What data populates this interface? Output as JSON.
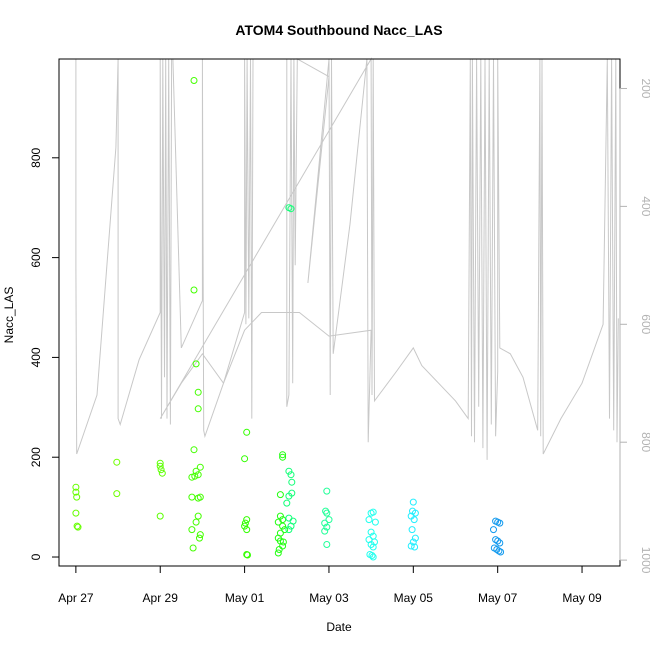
{
  "chart_data": {
    "type": "scatter",
    "title": "ATOM4 Southbound Nacc_LAS",
    "xlabel": "Date",
    "ylabel": "Nacc_LAS",
    "x_ticks": [
      "Apr 27",
      "Apr 29",
      "May 01",
      "May 03",
      "May 05",
      "May 07",
      "May 09"
    ],
    "y_ticks": [
      "0",
      "200",
      "400",
      "600",
      "800"
    ],
    "y_right_ticks": [
      "200",
      "400",
      "600",
      "800",
      "1000"
    ],
    "y_right_note": "right axis is reversed (altitude/pressure style)",
    "xlim_days": [
      -0.4,
      12.9
    ],
    "ylim": [
      -18,
      998
    ],
    "y_right_lim": [
      1010,
      150
    ],
    "colors": {
      "trace": "#c8c8c8",
      "axis": "#000000",
      "right_axis": "#b3b3b3"
    },
    "trace_right_axis": [
      [
        0.0,
        490
      ],
      [
        0.0,
        150
      ],
      [
        0.0,
        505
      ],
      [
        0.02,
        820
      ],
      [
        0.5,
        720
      ],
      [
        0.95,
        300
      ],
      [
        1.0,
        150
      ],
      [
        1.0,
        150
      ],
      [
        1.0,
        760
      ],
      [
        1.05,
        770
      ],
      [
        1.5,
        660
      ],
      [
        2.0,
        580
      ],
      [
        2.0,
        150
      ],
      [
        2.03,
        760
      ],
      [
        2.06,
        150
      ],
      [
        2.1,
        690
      ],
      [
        2.13,
        150
      ],
      [
        2.16,
        760
      ],
      [
        2.2,
        150
      ],
      [
        2.24,
        770
      ],
      [
        2.27,
        150
      ],
      [
        2.3,
        150
      ],
      [
        2.5,
        640
      ],
      [
        3.0,
        560
      ],
      [
        3.0,
        150
      ],
      [
        3.03,
        780
      ],
      [
        3.06,
        790
      ],
      [
        3.5,
        700
      ],
      [
        4.0,
        580
      ],
      [
        4.0,
        150
      ],
      [
        4.03,
        600
      ],
      [
        4.06,
        150
      ],
      [
        4.1,
        590
      ],
      [
        4.14,
        150
      ],
      [
        4.17,
        760
      ],
      [
        4.2,
        150
      ],
      [
        5.0,
        150
      ],
      [
        5.0,
        740
      ],
      [
        5.05,
        720
      ],
      [
        5.1,
        150
      ],
      [
        5.14,
        700
      ],
      [
        5.17,
        150
      ],
      [
        5.2,
        500
      ],
      [
        5.25,
        150
      ],
      [
        6.0,
        180
      ],
      [
        5.5,
        530
      ],
      [
        6.0,
        150
      ],
      [
        6.03,
        720
      ],
      [
        6.06,
        150
      ],
      [
        6.1,
        650
      ],
      [
        6.5,
        430
      ],
      [
        6.9,
        150
      ],
      [
        6.93,
        800
      ],
      [
        7.0,
        610
      ],
      [
        6.0,
        620
      ],
      [
        5.3,
        580
      ],
      [
        4.4,
        580
      ],
      [
        4.0,
        610
      ],
      [
        3.5,
        700
      ],
      [
        3.0,
        650
      ],
      [
        2.5,
        700
      ],
      [
        2.0,
        760
      ],
      [
        7.0,
        150
      ],
      [
        7.02,
        720
      ],
      [
        7.05,
        150
      ],
      [
        7.08,
        730
      ],
      [
        7.6,
        680
      ],
      [
        8.0,
        640
      ],
      [
        8.2,
        670
      ],
      [
        8.6,
        700
      ],
      [
        9.0,
        730
      ],
      [
        9.3,
        760
      ],
      [
        9.35,
        150
      ],
      [
        9.38,
        790
      ],
      [
        9.4,
        150
      ],
      [
        9.45,
        800
      ],
      [
        9.5,
        150
      ],
      [
        9.55,
        740
      ],
      [
        9.6,
        150
      ],
      [
        9.65,
        810
      ],
      [
        9.7,
        150
      ],
      [
        9.75,
        830
      ],
      [
        9.8,
        150
      ],
      [
        9.85,
        770
      ],
      [
        9.9,
        150
      ],
      [
        9.95,
        790
      ],
      [
        10.0,
        680
      ],
      [
        10.0,
        150
      ],
      [
        10.05,
        640
      ],
      [
        10.3,
        650
      ],
      [
        10.6,
        690
      ],
      [
        10.95,
        780
      ],
      [
        11.0,
        150
      ],
      [
        11.02,
        790
      ],
      [
        11.05,
        150
      ],
      [
        11.08,
        820
      ],
      [
        11.5,
        760
      ],
      [
        12.0,
        700
      ],
      [
        12.5,
        600
      ],
      [
        12.6,
        150
      ],
      [
        12.65,
        760
      ],
      [
        12.7,
        150
      ],
      [
        12.75,
        780
      ],
      [
        12.8,
        150
      ],
      [
        12.83,
        800
      ],
      [
        12.86,
        590
      ]
    ],
    "points": [
      {
        "x": 0.0,
        "y": 140,
        "c": "#66ff00"
      },
      {
        "x": 0.0,
        "y": 130,
        "c": "#66ff00"
      },
      {
        "x": 0.02,
        "y": 120,
        "c": "#66ff00"
      },
      {
        "x": 0.0,
        "y": 88,
        "c": "#66ff00"
      },
      {
        "x": 0.03,
        "y": 62,
        "c": "#66ff00"
      },
      {
        "x": 0.05,
        "y": 60,
        "c": "#66ff00"
      },
      {
        "x": 0.97,
        "y": 190,
        "c": "#6fff00"
      },
      {
        "x": 0.97,
        "y": 127,
        "c": "#6fff00"
      },
      {
        "x": 2.0,
        "y": 188,
        "c": "#5cff00"
      },
      {
        "x": 2.0,
        "y": 182,
        "c": "#5cff00"
      },
      {
        "x": 2.02,
        "y": 175,
        "c": "#5cff00"
      },
      {
        "x": 2.05,
        "y": 168,
        "c": "#5cff00"
      },
      {
        "x": 2.0,
        "y": 82,
        "c": "#5cff00"
      },
      {
        "x": 2.8,
        "y": 955,
        "c": "#44ff00"
      },
      {
        "x": 2.8,
        "y": 535,
        "c": "#44ff00"
      },
      {
        "x": 2.85,
        "y": 387,
        "c": "#44ff00"
      },
      {
        "x": 2.9,
        "y": 330,
        "c": "#44ff00"
      },
      {
        "x": 2.9,
        "y": 297,
        "c": "#44ff00"
      },
      {
        "x": 2.8,
        "y": 215,
        "c": "#44ff00"
      },
      {
        "x": 2.85,
        "y": 172,
        "c": "#44ff00"
      },
      {
        "x": 2.9,
        "y": 165,
        "c": "#44ff00"
      },
      {
        "x": 2.82,
        "y": 162,
        "c": "#44ff00"
      },
      {
        "x": 2.95,
        "y": 180,
        "c": "#44ff00"
      },
      {
        "x": 2.75,
        "y": 160,
        "c": "#44ff00"
      },
      {
        "x": 2.95,
        "y": 120,
        "c": "#44ff00"
      },
      {
        "x": 2.75,
        "y": 120,
        "c": "#44ff00"
      },
      {
        "x": 2.9,
        "y": 118,
        "c": "#44ff00"
      },
      {
        "x": 2.9,
        "y": 82,
        "c": "#44ff00"
      },
      {
        "x": 2.85,
        "y": 70,
        "c": "#44ff00"
      },
      {
        "x": 2.75,
        "y": 55,
        "c": "#44ff00"
      },
      {
        "x": 2.95,
        "y": 45,
        "c": "#44ff00"
      },
      {
        "x": 2.93,
        "y": 38,
        "c": "#44ff00"
      },
      {
        "x": 2.78,
        "y": 18,
        "c": "#44ff00"
      },
      {
        "x": 4.05,
        "y": 250,
        "c": "#33ff00"
      },
      {
        "x": 4.0,
        "y": 197,
        "c": "#33ff00"
      },
      {
        "x": 4.05,
        "y": 75,
        "c": "#33ff00"
      },
      {
        "x": 4.02,
        "y": 68,
        "c": "#33ff00"
      },
      {
        "x": 4.0,
        "y": 62,
        "c": "#33ff00"
      },
      {
        "x": 4.05,
        "y": 55,
        "c": "#33ff00"
      },
      {
        "x": 4.05,
        "y": 5,
        "c": "#33ff00"
      },
      {
        "x": 4.07,
        "y": 4,
        "c": "#33ff00"
      },
      {
        "x": 4.9,
        "y": 205,
        "c": "#22ff11"
      },
      {
        "x": 4.9,
        "y": 200,
        "c": "#22ff11"
      },
      {
        "x": 4.85,
        "y": 125,
        "c": "#22ff11"
      },
      {
        "x": 4.85,
        "y": 82,
        "c": "#22ff11"
      },
      {
        "x": 4.9,
        "y": 75,
        "c": "#22ff11"
      },
      {
        "x": 4.8,
        "y": 70,
        "c": "#22ff11"
      },
      {
        "x": 4.9,
        "y": 62,
        "c": "#22ff11"
      },
      {
        "x": 4.95,
        "y": 55,
        "c": "#22ff11"
      },
      {
        "x": 4.85,
        "y": 48,
        "c": "#22ff11"
      },
      {
        "x": 4.8,
        "y": 38,
        "c": "#22ff11"
      },
      {
        "x": 4.85,
        "y": 32,
        "c": "#22ff11"
      },
      {
        "x": 4.92,
        "y": 30,
        "c": "#22ff11"
      },
      {
        "x": 4.9,
        "y": 22,
        "c": "#22ff11"
      },
      {
        "x": 4.82,
        "y": 15,
        "c": "#22ff11"
      },
      {
        "x": 4.8,
        "y": 8,
        "c": "#22ff11"
      },
      {
        "x": 5.05,
        "y": 700,
        "c": "#11ff77"
      },
      {
        "x": 5.1,
        "y": 698,
        "c": "#11ff77"
      },
      {
        "x": 5.05,
        "y": 172,
        "c": "#11ff77"
      },
      {
        "x": 5.1,
        "y": 165,
        "c": "#11ff77"
      },
      {
        "x": 5.12,
        "y": 150,
        "c": "#11ff77"
      },
      {
        "x": 5.12,
        "y": 128,
        "c": "#11ff77"
      },
      {
        "x": 5.05,
        "y": 122,
        "c": "#11ff77"
      },
      {
        "x": 5.0,
        "y": 108,
        "c": "#11ff77"
      },
      {
        "x": 5.05,
        "y": 78,
        "c": "#11ff77"
      },
      {
        "x": 5.15,
        "y": 72,
        "c": "#11ff77"
      },
      {
        "x": 5.1,
        "y": 62,
        "c": "#11ff77"
      },
      {
        "x": 5.05,
        "y": 55,
        "c": "#11ff77"
      },
      {
        "x": 5.95,
        "y": 132,
        "c": "#22ff99"
      },
      {
        "x": 5.92,
        "y": 92,
        "c": "#22ff99"
      },
      {
        "x": 5.95,
        "y": 88,
        "c": "#22ff99"
      },
      {
        "x": 6.0,
        "y": 75,
        "c": "#22ff99"
      },
      {
        "x": 5.9,
        "y": 68,
        "c": "#22ff99"
      },
      {
        "x": 5.95,
        "y": 60,
        "c": "#22ff99"
      },
      {
        "x": 5.9,
        "y": 52,
        "c": "#22ff99"
      },
      {
        "x": 5.95,
        "y": 25,
        "c": "#22ff99"
      },
      {
        "x": 7.05,
        "y": 90,
        "c": "#22ffee"
      },
      {
        "x": 7.0,
        "y": 88,
        "c": "#22ffee"
      },
      {
        "x": 6.95,
        "y": 75,
        "c": "#22ffee"
      },
      {
        "x": 7.1,
        "y": 70,
        "c": "#22ffee"
      },
      {
        "x": 7.0,
        "y": 50,
        "c": "#22ffee"
      },
      {
        "x": 7.05,
        "y": 42,
        "c": "#22ffee"
      },
      {
        "x": 6.95,
        "y": 35,
        "c": "#22ffee"
      },
      {
        "x": 7.08,
        "y": 30,
        "c": "#22ffee"
      },
      {
        "x": 7.0,
        "y": 25,
        "c": "#22ffee"
      },
      {
        "x": 7.05,
        "y": 20,
        "c": "#22ffee"
      },
      {
        "x": 6.97,
        "y": 5,
        "c": "#22ffee"
      },
      {
        "x": 7.02,
        "y": 3,
        "c": "#22ffee"
      },
      {
        "x": 7.05,
        "y": 0,
        "c": "#22ffee"
      },
      {
        "x": 8.0,
        "y": 110,
        "c": "#22eeff"
      },
      {
        "x": 7.98,
        "y": 92,
        "c": "#22eeff"
      },
      {
        "x": 8.05,
        "y": 88,
        "c": "#22eeff"
      },
      {
        "x": 7.95,
        "y": 82,
        "c": "#22eeff"
      },
      {
        "x": 8.02,
        "y": 75,
        "c": "#22eeff"
      },
      {
        "x": 7.97,
        "y": 55,
        "c": "#22eeff"
      },
      {
        "x": 8.05,
        "y": 38,
        "c": "#22eeff"
      },
      {
        "x": 8.0,
        "y": 30,
        "c": "#22eeff"
      },
      {
        "x": 7.95,
        "y": 22,
        "c": "#22eeff"
      },
      {
        "x": 8.03,
        "y": 20,
        "c": "#22eeff"
      },
      {
        "x": 9.95,
        "y": 72,
        "c": "#1199ee"
      },
      {
        "x": 10.0,
        "y": 70,
        "c": "#1199ee"
      },
      {
        "x": 10.05,
        "y": 68,
        "c": "#1199ee"
      },
      {
        "x": 9.9,
        "y": 55,
        "c": "#1199ee"
      },
      {
        "x": 9.95,
        "y": 35,
        "c": "#1199ee"
      },
      {
        "x": 10.0,
        "y": 32,
        "c": "#1199ee"
      },
      {
        "x": 10.05,
        "y": 28,
        "c": "#1199ee"
      },
      {
        "x": 9.92,
        "y": 18,
        "c": "#1199ee"
      },
      {
        "x": 9.98,
        "y": 15,
        "c": "#1199ee"
      },
      {
        "x": 10.03,
        "y": 12,
        "c": "#1199ee"
      },
      {
        "x": 10.07,
        "y": 10,
        "c": "#1199ee"
      }
    ]
  }
}
